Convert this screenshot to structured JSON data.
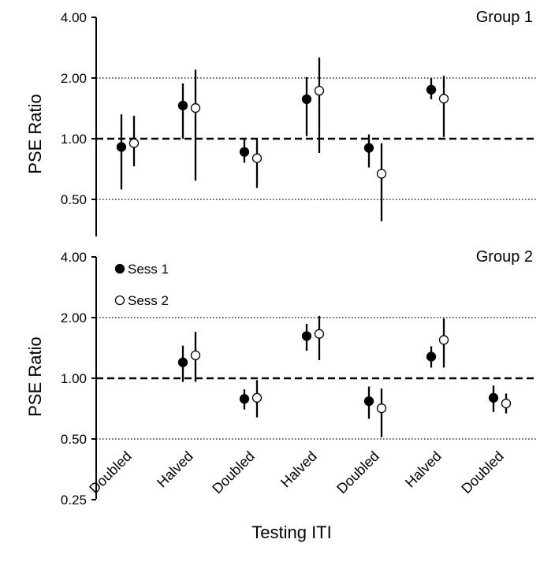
{
  "chart_data": {
    "type": "scatter",
    "subtype": "point-with-error-bars",
    "y_scale": "log2",
    "ylabel": "PSE  Ratio",
    "xlabel": "Testing ITI",
    "categories": [
      "Doubled",
      "Halved",
      "Doubled",
      "Halved",
      "Doubled",
      "Halved",
      "Doubled"
    ],
    "reference_line": 1.0,
    "gridlines": [
      0.5,
      2.0
    ],
    "legend": {
      "placement": "top-left of lower panel",
      "entries": [
        {
          "label": "Sess 1",
          "marker": "filled-circle"
        },
        {
          "label": "Sess 2",
          "marker": "open-circle"
        }
      ]
    },
    "panels": [
      {
        "title": "Group 1",
        "ylim": [
          0.42,
          4.0
        ],
        "y_ticks": [
          "4.00",
          "2.00",
          "1.00",
          "0.50"
        ],
        "series": [
          {
            "name": "Sess 1",
            "marker": "filled-circle",
            "points": [
              {
                "cat": 0,
                "y": 0.91,
                "lo": 0.56,
                "hi": 1.32
              },
              {
                "cat": 1,
                "y": 1.46,
                "lo": 1.0,
                "hi": 1.88
              },
              {
                "cat": 2,
                "y": 0.86,
                "lo": 0.76,
                "hi": 0.99
              },
              {
                "cat": 3,
                "y": 1.57,
                "lo": 1.03,
                "hi": 2.02
              },
              {
                "cat": 4,
                "y": 0.9,
                "lo": 0.72,
                "hi": 1.05
              }
            ]
          },
          {
            "name": "Sess 2",
            "marker": "open-circle",
            "points": [
              {
                "cat": 0,
                "y": 0.95,
                "lo": 0.73,
                "hi": 1.3
              },
              {
                "cat": 1,
                "y": 1.42,
                "lo": 0.62,
                "hi": 2.2
              },
              {
                "cat": 2,
                "y": 0.8,
                "lo": 0.57,
                "hi": 1.0
              },
              {
                "cat": 3,
                "y": 1.73,
                "lo": 0.85,
                "hi": 2.53
              },
              {
                "cat": 4,
                "y": 0.67,
                "lo": 0.39,
                "hi": 0.95
              }
            ]
          }
        ],
        "extra_points": [
          {
            "cat": 5,
            "sess1": {
              "y": 1.75,
              "lo": 1.57,
              "hi": 2.0
            },
            "sess2": {
              "y": 1.58,
              "lo": 1.02,
              "hi": 2.05
            }
          }
        ]
      },
      {
        "title": "Group 2",
        "ylim": [
          0.25,
          4.0
        ],
        "y_ticks": [
          "4.00",
          "2.00",
          "1.00",
          "0.50",
          "0.25"
        ],
        "series": [
          {
            "name": "Sess 1",
            "marker": "filled-circle",
            "points": [
              {
                "cat": 1,
                "y": 1.2,
                "lo": 0.96,
                "hi": 1.45
              },
              {
                "cat": 2,
                "y": 0.79,
                "lo": 0.7,
                "hi": 0.88
              },
              {
                "cat": 3,
                "y": 1.62,
                "lo": 1.37,
                "hi": 1.86
              },
              {
                "cat": 4,
                "y": 0.77,
                "lo": 0.63,
                "hi": 0.91
              },
              {
                "cat": 5,
                "y": 1.28,
                "lo": 1.13,
                "hi": 1.44
              },
              {
                "cat": 6,
                "y": 0.8,
                "lo": 0.68,
                "hi": 0.92
              }
            ]
          },
          {
            "name": "Sess 2",
            "marker": "open-circle",
            "points": [
              {
                "cat": 1,
                "y": 1.3,
                "lo": 0.96,
                "hi": 1.7
              },
              {
                "cat": 2,
                "y": 0.8,
                "lo": 0.64,
                "hi": 0.98
              },
              {
                "cat": 3,
                "y": 1.66,
                "lo": 1.23,
                "hi": 2.04
              },
              {
                "cat": 4,
                "y": 0.71,
                "lo": 0.51,
                "hi": 0.89
              },
              {
                "cat": 5,
                "y": 1.55,
                "lo": 1.13,
                "hi": 1.98
              },
              {
                "cat": 6,
                "y": 0.75,
                "lo": 0.67,
                "hi": 0.84
              }
            ]
          }
        ]
      }
    ]
  }
}
